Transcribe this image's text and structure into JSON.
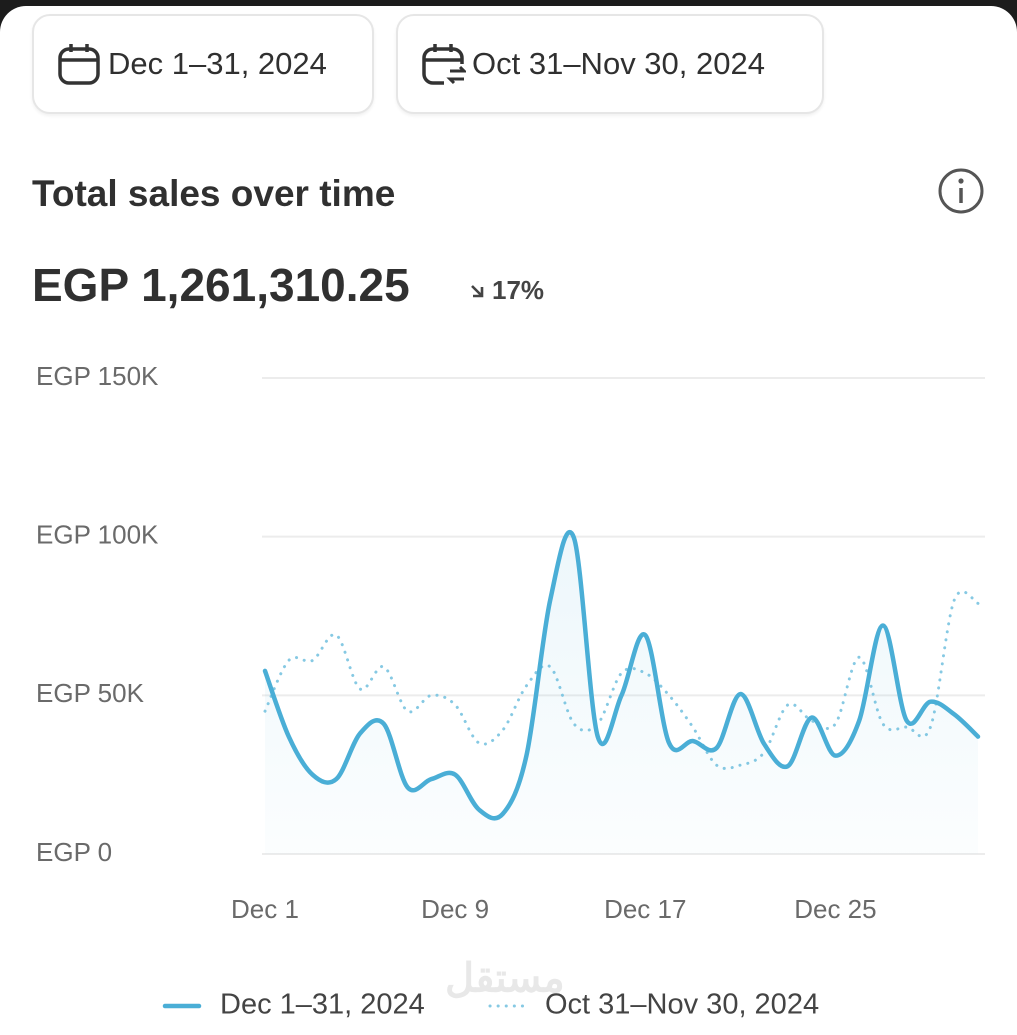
{
  "date_range": "Dec 1–31, 2024",
  "comparison_range": "Oct 31–Nov 30, 2024",
  "watermark": "مستقل",
  "chart_data": {
    "type": "line",
    "title": "Total sales over time",
    "total": "EGP 1,261,310.25",
    "change": "17%",
    "categories": [
      "Dec 1",
      null,
      null,
      null,
      null,
      null,
      null,
      null,
      "Dec 9",
      null,
      null,
      null,
      null,
      null,
      null,
      null,
      "Dec 17",
      null,
      null,
      null,
      null,
      null,
      null,
      null,
      "Dec 25",
      null,
      null,
      null,
      null,
      null,
      null
    ],
    "ylim": [
      0,
      150000
    ],
    "yticks": [
      {
        "value": 0,
        "label": "EGP 0"
      },
      {
        "value": 50000,
        "label": "EGP 50K"
      },
      {
        "value": 100000,
        "label": "EGP 100K"
      },
      {
        "value": 150000,
        "label": "EGP 150K"
      }
    ],
    "grid": true,
    "series": [
      {
        "name": "Dec 1–31, 2024",
        "color": "#4aaed6",
        "style": "solid",
        "area": true,
        "values": [
          57700,
          37000,
          25000,
          23600,
          38000,
          41000,
          21000,
          23600,
          25000,
          14000,
          12600,
          31000,
          80000,
          99600,
          37000,
          50000,
          69000,
          35000,
          35600,
          33400,
          50400,
          34700,
          27700,
          43000,
          31000,
          42000,
          72000,
          42000,
          48000,
          44000,
          37000
        ]
      },
      {
        "name": "Oct 31–Nov 30, 2024",
        "color": "#86c9e3",
        "style": "dotted",
        "area": false,
        "values": [
          45000,
          61000,
          61000,
          69000,
          52000,
          59000,
          45000,
          50000,
          47000,
          35000,
          39000,
          53000,
          59000,
          41000,
          41000,
          57000,
          57000,
          50000,
          40000,
          28000,
          28000,
          32000,
          47000,
          42000,
          41000,
          62000,
          41000,
          40000,
          40000,
          80000,
          79000
        ]
      }
    ]
  }
}
